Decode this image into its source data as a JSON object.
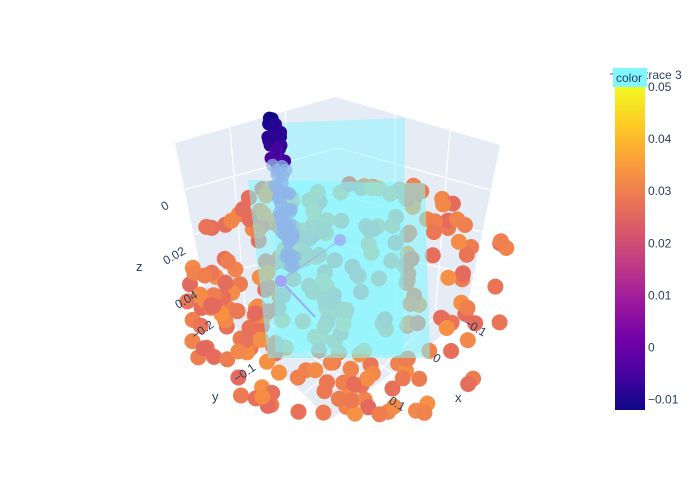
{
  "chart_data": {
    "type": "scatter",
    "subtype": "3d-scatter-with-surface-planes",
    "axes": {
      "x": {
        "label": "x",
        "ticks": [
          "−0.1",
          "0",
          "0.1"
        ]
      },
      "y": {
        "label": "y",
        "ticks": [
          "−0.2",
          "−0.1"
        ]
      },
      "z": {
        "label": "z",
        "ticks": [
          "0",
          "0.02",
          "0.04"
        ]
      }
    },
    "colorbar": {
      "title": "color",
      "range": [
        -0.012,
        0.05
      ],
      "tick_values": [
        0.05,
        0.04,
        0.03,
        0.02,
        0.01,
        0,
        -0.01
      ],
      "tick_labels": [
        "0.05",
        "0.04",
        "0.03",
        "0.02",
        "0.01",
        "0",
        "−0.01"
      ],
      "colorscale": [
        "#0d0887",
        "#46039f",
        "#7201a8",
        "#9c179e",
        "#bd3786",
        "#d8576b",
        "#ed7953",
        "#fb9f3a",
        "#fdca26",
        "#f0f921"
      ]
    },
    "legend": {
      "entries": [
        "trace 3"
      ],
      "placement": "top-right"
    },
    "series": [
      {
        "kind": "markers",
        "colorscale": "plasma",
        "note_color_range": [
          -0.012,
          0.05
        ]
      },
      {
        "kind": "surface-planes",
        "count": 2,
        "color": "#7ff7ff"
      },
      {
        "kind": "line+markers",
        "name": "trace 3",
        "color": "#9fa8f5"
      }
    ],
    "grid": true,
    "scene_background": "#e5ecf6"
  }
}
